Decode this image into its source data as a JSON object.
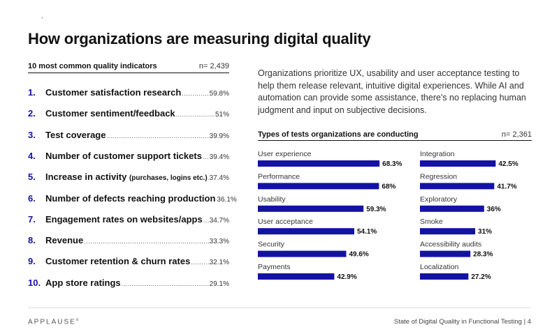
{
  "header": {
    "dot": ".",
    "title": "How organizations are measuring digital quality"
  },
  "indicators": {
    "heading": "10 most common quality indicators",
    "n": "n= 2,439",
    "items": [
      {
        "num": "1.",
        "label": "Customer satisfaction research",
        "note": "",
        "value": "59.8%"
      },
      {
        "num": "2.",
        "label": "Customer sentiment/feedback",
        "note": "",
        "value": "51%"
      },
      {
        "num": "3.",
        "label": "Test coverage",
        "note": "",
        "value": "39.9%"
      },
      {
        "num": "4.",
        "label": "Number of customer support tickets",
        "note": "",
        "value": "39.4%"
      },
      {
        "num": "5.",
        "label": "Increase in activity",
        "note": "(purchases, logins etc.)",
        "value": "37.4%"
      },
      {
        "num": "6.",
        "label": "Number of defects reaching production",
        "note": "",
        "value": "36.1%"
      },
      {
        "num": "7.",
        "label": "Engagement rates on websites/apps",
        "note": "",
        "value": "34.7%"
      },
      {
        "num": "8.",
        "label": "Revenue",
        "note": "",
        "value": "33.3%"
      },
      {
        "num": "9.",
        "label": "Customer retention & churn rates",
        "note": "",
        "value": "32.1%"
      },
      {
        "num": "10.",
        "label": "App store ratings",
        "note": "",
        "value": "29.1%"
      }
    ]
  },
  "paragraph": "Organizations prioritize UX, usability and user acceptance testing to help them release relevant, intuitive digital experiences. While AI and automation can provide some assistance, there's no replacing human judgment and input on subjective decisions.",
  "chart_data": {
    "type": "bar",
    "title": "Types of tests organizations are conducting",
    "n": "n= 2,361",
    "bar_color": "#1412a3",
    "columns": [
      {
        "categories": [
          "User experience",
          "Performance",
          "Usability",
          "User acceptance",
          "Security",
          "Payments"
        ],
        "values": [
          68.3,
          68,
          59.3,
          54.1,
          49.6,
          42.9
        ],
        "labels": [
          "68.3%",
          "68%",
          "59.3%",
          "54.1%",
          "49.6%",
          "42.9%"
        ]
      },
      {
        "categories": [
          "Integration",
          "Regression",
          "Exploratory",
          "Smoke",
          "Accessibility audits",
          "Localization"
        ],
        "values": [
          42.5,
          41.7,
          36,
          31,
          28.3,
          27.2
        ],
        "labels": [
          "42.5%",
          "41.7%",
          "36%",
          "31%",
          "28.3%",
          "27.2%"
        ]
      }
    ]
  },
  "footer": {
    "brand": "APPLAUSE",
    "brand_mark": "o",
    "right": "State of Digital Quality in Functional Testing  |  4"
  },
  "colors": {
    "accent": "#1412a3",
    "text": "#111111"
  }
}
